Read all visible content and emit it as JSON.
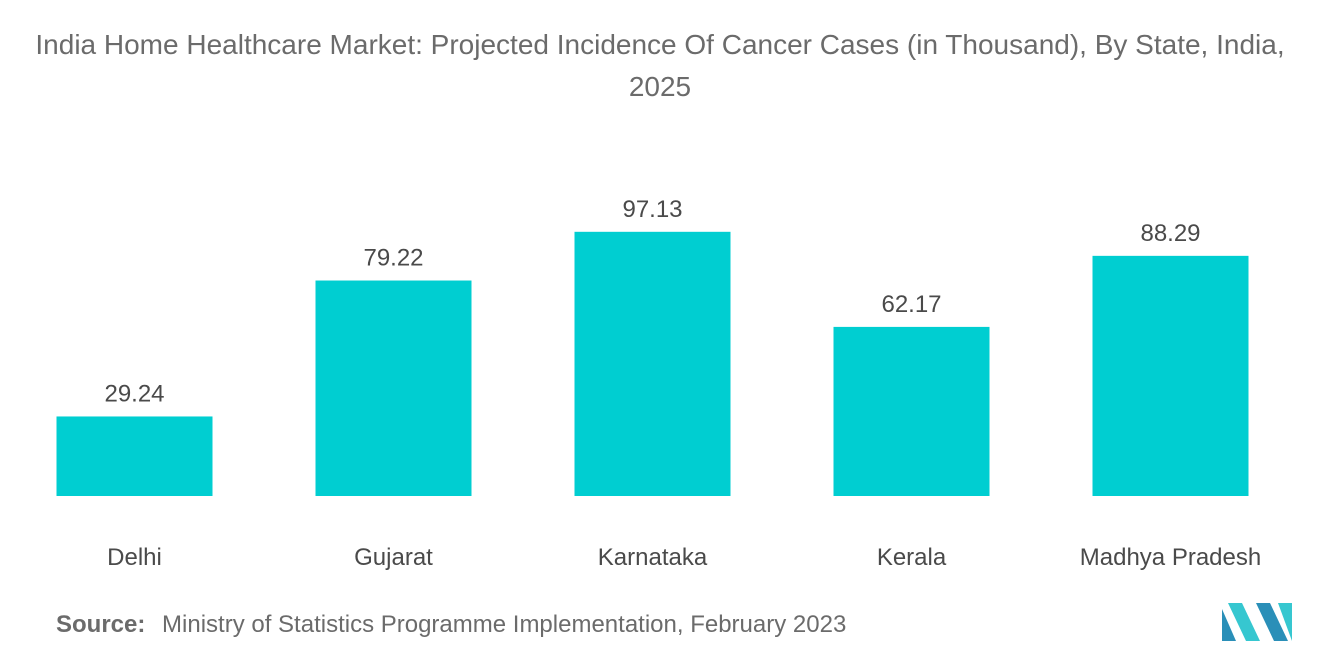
{
  "chart_data": {
    "type": "bar",
    "title": "India Home Healthcare Market: Projected Incidence Of Cancer Cases (in Thousand), By State, India, 2025",
    "categories": [
      "Delhi",
      "Gujarat",
      "Karnataka",
      "Kerala",
      "Madhya Pradesh"
    ],
    "values": [
      29.24,
      79.22,
      97.13,
      62.17,
      88.29
    ],
    "value_labels": [
      "29.24",
      "79.22",
      "97.13",
      "62.17",
      "88.29"
    ],
    "xlabel": "",
    "ylabel": "",
    "ylim": [
      0,
      100
    ],
    "grid": false,
    "legend": "none",
    "bar_color": "#00ced1"
  },
  "source": {
    "label": "Source:",
    "text": "Ministry of Statistics Programme Implementation, February 2023"
  },
  "logo": {
    "icon": "mordor-intelligence-logo-icon",
    "colors": [
      "#2a8fb8",
      "#36c7d0"
    ]
  }
}
